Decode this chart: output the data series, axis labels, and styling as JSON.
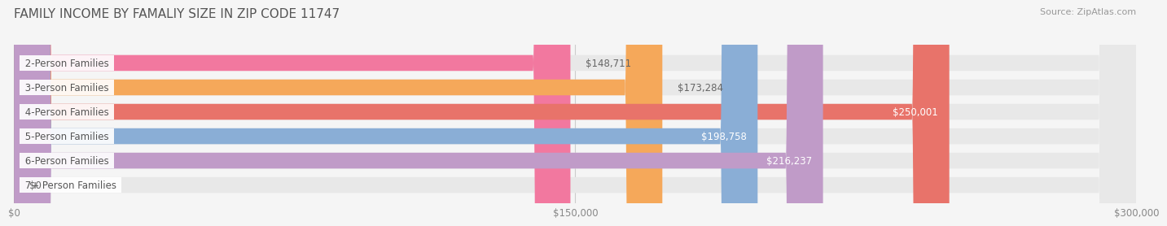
{
  "title": "FAMILY INCOME BY FAMALIY SIZE IN ZIP CODE 11747",
  "source": "Source: ZipAtlas.com",
  "categories": [
    "2-Person Families",
    "3-Person Families",
    "4-Person Families",
    "5-Person Families",
    "6-Person Families",
    "7+ Person Families"
  ],
  "values": [
    148711,
    173284,
    250001,
    198758,
    216237,
    0
  ],
  "bar_colors": [
    "#f2789f",
    "#f5a85a",
    "#e8736a",
    "#8aaed6",
    "#c09bc8",
    "#7ecfcf"
  ],
  "value_labels": [
    "$148,711",
    "$173,284",
    "$250,001",
    "$198,758",
    "$216,237",
    "$0"
  ],
  "label_inside": [
    false,
    false,
    true,
    true,
    true,
    false
  ],
  "xlim": [
    0,
    300000
  ],
  "xticks": [
    0,
    150000,
    300000
  ],
  "xtick_labels": [
    "$0",
    "$150,000",
    "$300,000"
  ],
  "background_color": "#f5f5f5",
  "bar_bg_color": "#e8e8e8",
  "bar_height": 0.65,
  "title_fontsize": 11,
  "label_fontsize": 8.5,
  "value_fontsize": 8.5,
  "source_fontsize": 8
}
